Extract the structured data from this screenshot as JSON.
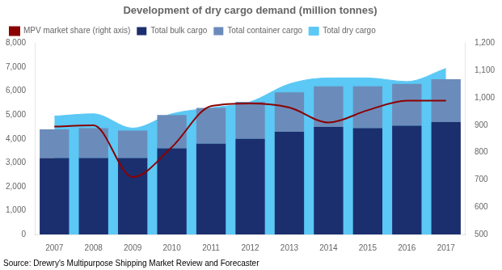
{
  "chart_data": {
    "type": "bar",
    "title": "Development of dry cargo demand (million tonnes)",
    "source": "Source: Drewry's Multipurpose Shipping Market Review and Forecaster",
    "categories": [
      "2007",
      "2008",
      "2009",
      "2010",
      "2011",
      "2012",
      "2013",
      "2014",
      "2015",
      "2016",
      "2017"
    ],
    "series": [
      {
        "name": "Total dry cargo",
        "type": "area",
        "color": "#5bc8f5",
        "values": [
          4950,
          5050,
          4450,
          5050,
          5300,
          5550,
          6300,
          6550,
          6550,
          6400,
          6950
        ]
      },
      {
        "name": "Total bulk cargo",
        "type": "bar",
        "color": "#1b2f6e",
        "values": [
          3200,
          3200,
          3200,
          3600,
          3800,
          4000,
          4300,
          4500,
          4450,
          4550,
          4700
        ]
      },
      {
        "name": "Total container cargo",
        "type": "bar",
        "color": "#6b8cba",
        "values": [
          1200,
          1250,
          1150,
          1400,
          1500,
          1550,
          1650,
          1700,
          1750,
          1750,
          1800
        ]
      },
      {
        "name": "MPV market share (right axis)",
        "type": "line",
        "color": "#8b0000",
        "axis": "y2",
        "values": [
          895,
          900,
          710,
          820,
          970,
          980,
          965,
          910,
          955,
          990,
          990
        ]
      }
    ],
    "stacked": true,
    "ylim": [
      0,
      8000
    ],
    "yticks": [
      0,
      {
        "value": 1000,
        "label": "1,000"
      },
      {
        "value": 2000,
        "label": "2,000"
      },
      {
        "value": 3000,
        "label": "3,000"
      },
      {
        "value": 4000,
        "label": "4,000"
      },
      {
        "value": 5000,
        "label": "5,000"
      },
      {
        "value": 6000,
        "label": "6,000"
      },
      {
        "value": 7000,
        "label": "7,000"
      },
      {
        "value": 8000,
        "label": "8,000"
      }
    ],
    "y2lim": [
      500,
      1200
    ],
    "y2ticks": [
      500,
      600,
      700,
      800,
      900,
      {
        "value": 1000,
        "label": "1,000"
      },
      {
        "value": 1100,
        "label": "1,100"
      },
      {
        "value": 1200,
        "label": "1,200"
      }
    ],
    "grid": false,
    "legend": "upper left"
  }
}
